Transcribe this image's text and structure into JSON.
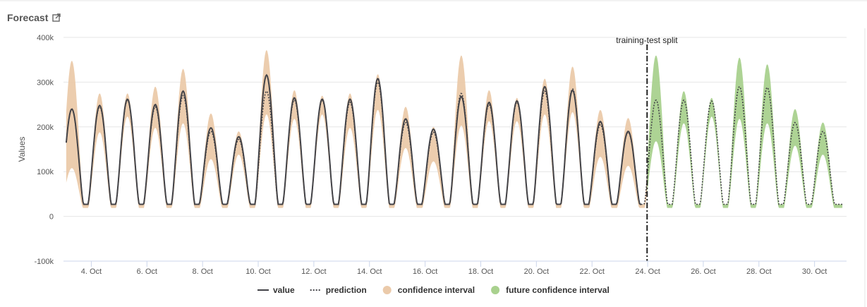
{
  "panel": {
    "title": "Forecast",
    "open_icon": "external-link-icon"
  },
  "chart_data": {
    "type": "line",
    "title": "Forecast",
    "ylabel": "Values",
    "xlabel": "",
    "ylim": [
      -100000,
      400000
    ],
    "y_ticks": [
      -100000,
      0,
      100000,
      200000,
      300000,
      400000
    ],
    "y_tick_labels": [
      "-100k",
      "0",
      "100k",
      "200k",
      "300k",
      "400k"
    ],
    "x_range_days": [
      3,
      31.15
    ],
    "x_ticks": [
      {
        "day": 4,
        "label": "4. Oct"
      },
      {
        "day": 6,
        "label": "6. Oct"
      },
      {
        "day": 8,
        "label": "8. Oct"
      },
      {
        "day": 10,
        "label": "10. Oct"
      },
      {
        "day": 12,
        "label": "12. Oct"
      },
      {
        "day": 14,
        "label": "14. Oct"
      },
      {
        "day": 16,
        "label": "16. Oct"
      },
      {
        "day": 18,
        "label": "18. Oct"
      },
      {
        "day": 20,
        "label": "20. Oct"
      },
      {
        "day": 22,
        "label": "22. Oct"
      },
      {
        "day": 24,
        "label": "24. Oct"
      },
      {
        "day": 26,
        "label": "26. Oct"
      },
      {
        "day": 28,
        "label": "28. Oct"
      },
      {
        "day": 30,
        "label": "30. Oct"
      }
    ],
    "split": {
      "day": 23.98,
      "label": "training-test split"
    },
    "daily": {
      "min_value": 27000,
      "days": [
        3.3,
        4.3,
        5.3,
        6.3,
        7.3,
        8.3,
        9.3,
        10.3,
        11.3,
        12.3,
        13.3,
        14.3,
        15.3,
        16.3,
        17.3,
        18.3,
        19.3,
        20.3,
        21.3,
        22.3,
        23.3,
        24.3,
        25.3,
        26.3,
        27.3,
        28.3,
        29.3,
        30.3
      ],
      "value_peaks": [
        240000,
        248000,
        262000,
        250000,
        280000,
        198000,
        178000,
        316000,
        265000,
        262000,
        262000,
        308000,
        218000,
        195000,
        268000,
        255000,
        258000,
        290000,
        282000,
        212000,
        190000,
        null,
        null,
        null,
        null,
        null,
        null,
        null
      ],
      "prediction_peaks": [
        240000,
        245000,
        260000,
        245000,
        270000,
        190000,
        172000,
        280000,
        260000,
        260000,
        255000,
        300000,
        210000,
        188000,
        275000,
        250000,
        255000,
        280000,
        285000,
        205000,
        188000,
        260000,
        260000,
        258000,
        290000,
        288000,
        210000,
        190000
      ],
      "ci_upper_peaks": [
        348000,
        275000,
        275000,
        290000,
        330000,
        230000,
        190000,
        372000,
        282000,
        270000,
        275000,
        318000,
        245000,
        200000,
        360000,
        282000,
        265000,
        308000,
        335000,
        238000,
        220000,
        360000,
        280000,
        265000,
        355000,
        340000,
        240000,
        210000
      ],
      "ci_lower_peaks": [
        120000,
        200000,
        235000,
        210000,
        220000,
        140000,
        150000,
        240000,
        230000,
        240000,
        210000,
        250000,
        165000,
        135000,
        215000,
        225000,
        225000,
        240000,
        245000,
        145000,
        125000,
        180000,
        220000,
        235000,
        230000,
        220000,
        170000,
        150000
      ]
    },
    "series": [
      {
        "name": "value",
        "color": "#434348",
        "style": "solid"
      },
      {
        "name": "prediction",
        "color": "#434348",
        "style": "dotted"
      },
      {
        "name": "confidence interval",
        "color": "#ebcaaa",
        "style": "area"
      },
      {
        "name": "future confidence interval",
        "color": "#a9d18e",
        "style": "area"
      }
    ],
    "grid": true,
    "legend_position": "bottom-center"
  }
}
